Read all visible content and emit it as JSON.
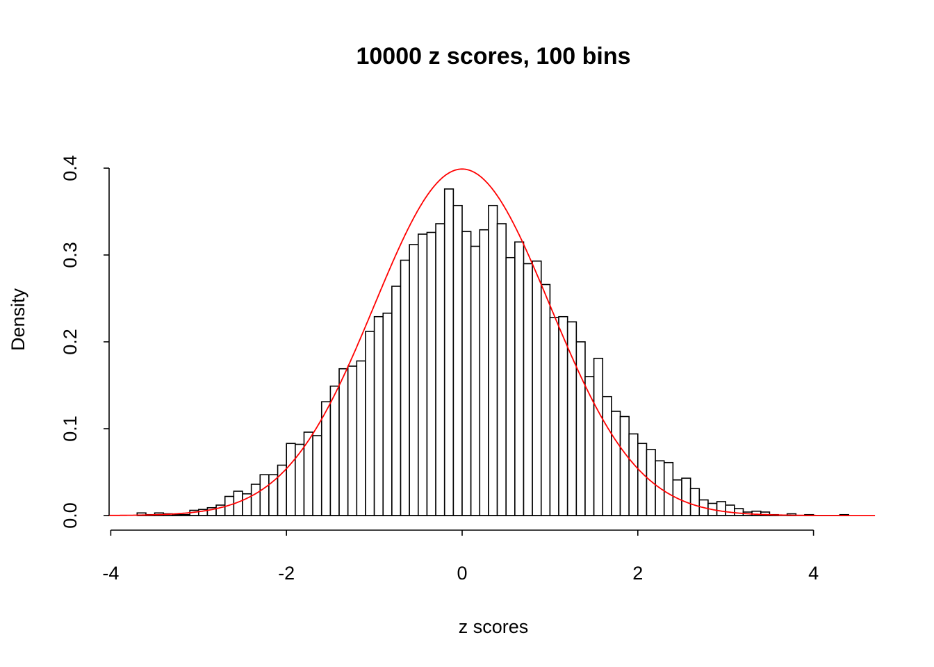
{
  "chart_data": {
    "type": "bar",
    "subtype": "histogram with density curve",
    "title": "10000 z scores, 100 bins",
    "xlabel": "z scores",
    "ylabel": "Density",
    "xlim": [
      -4,
      4.7
    ],
    "ylim": [
      0,
      0.4
    ],
    "x_ticks": [
      "-4",
      "-2",
      "0",
      "2",
      "4"
    ],
    "y_ticks": [
      "0.0",
      "0.1",
      "0.2",
      "0.3",
      "0.4"
    ],
    "grid": false,
    "bin_width": 0.1,
    "bin_start": -3.7,
    "values": [
      0.003,
      0.001,
      0.003,
      0.002,
      0.001,
      0.001,
      0.006,
      0.007,
      0.009,
      0.012,
      0.022,
      0.028,
      0.025,
      0.036,
      0.047,
      0.047,
      0.058,
      0.083,
      0.082,
      0.096,
      0.092,
      0.131,
      0.149,
      0.169,
      0.172,
      0.178,
      0.212,
      0.229,
      0.233,
      0.264,
      0.294,
      0.312,
      0.324,
      0.326,
      0.336,
      0.376,
      0.357,
      0.327,
      0.31,
      0.329,
      0.357,
      0.336,
      0.297,
      0.315,
      0.29,
      0.293,
      0.266,
      0.228,
      0.229,
      0.223,
      0.2,
      0.16,
      0.181,
      0.137,
      0.12,
      0.114,
      0.094,
      0.083,
      0.076,
      0.063,
      0.061,
      0.041,
      0.043,
      0.031,
      0.018,
      0.014,
      0.016,
      0.012,
      0.008,
      0.004,
      0.005,
      0.004,
      0.001,
      0,
      0.002,
      0,
      0.001,
      0,
      0,
      0,
      0.001
    ],
    "curve": {
      "type": "normal density",
      "mean": 0,
      "sd": 1,
      "color": "#ff0000"
    },
    "bar_fill": "#ffffff",
    "bar_stroke": "#000000"
  }
}
